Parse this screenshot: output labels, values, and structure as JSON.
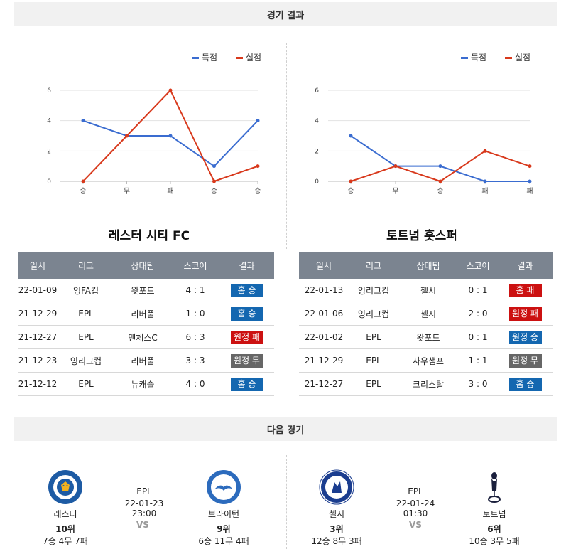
{
  "sections": {
    "results_title": "경기 결과",
    "next_title": "다음 경기"
  },
  "legend": {
    "scored": "득점",
    "conceded": "실점"
  },
  "colors": {
    "scored": "#3a6cd0",
    "conceded": "#d8391c",
    "win": "#1467b0",
    "loss": "#cc1111",
    "draw": "#666666"
  },
  "chart_data": [
    {
      "type": "line",
      "categories": [
        "승",
        "무",
        "패",
        "승",
        "승"
      ],
      "series": [
        {
          "name": "득점",
          "values": [
            4,
            3,
            3,
            1,
            4
          ]
        },
        {
          "name": "실점",
          "values": [
            0,
            3,
            6,
            0,
            1
          ]
        }
      ],
      "yticks": [
        "0",
        "2",
        "4",
        "6"
      ],
      "ylim": [
        0,
        6
      ],
      "grid": true,
      "legend": "top-right"
    },
    {
      "type": "line",
      "categories": [
        "승",
        "무",
        "승",
        "패",
        "패"
      ],
      "series": [
        {
          "name": "득점",
          "values": [
            3,
            1,
            1,
            0,
            0
          ]
        },
        {
          "name": "실점",
          "values": [
            0,
            1,
            0,
            2,
            1
          ]
        }
      ],
      "yticks": [
        "0",
        "2",
        "4",
        "6"
      ],
      "ylim": [
        0,
        6
      ],
      "grid": true,
      "legend": "top-right"
    }
  ],
  "headers": [
    "일시",
    "리그",
    "상대팀",
    "스코어",
    "결과"
  ],
  "teams": [
    {
      "name": "레스터 시티 FC",
      "rows": [
        {
          "date": "22-01-09",
          "league": "잉FA컵",
          "opponent": "왓포드",
          "score": "4 : 1",
          "result": "홈 승",
          "type": "win"
        },
        {
          "date": "21-12-29",
          "league": "EPL",
          "opponent": "리버풀",
          "score": "1 : 0",
          "result": "홈 승",
          "type": "win"
        },
        {
          "date": "21-12-27",
          "league": "EPL",
          "opponent": "맨체스C",
          "score": "6 : 3",
          "result": "원정 패",
          "type": "loss"
        },
        {
          "date": "21-12-23",
          "league": "잉리그컵",
          "opponent": "리버풀",
          "score": "3 : 3",
          "result": "원정 무",
          "type": "draw"
        },
        {
          "date": "21-12-12",
          "league": "EPL",
          "opponent": "뉴캐슬",
          "score": "4 : 0",
          "result": "홈 승",
          "type": "win"
        }
      ]
    },
    {
      "name": "토트넘 홋스퍼",
      "rows": [
        {
          "date": "22-01-13",
          "league": "잉리그컵",
          "opponent": "첼시",
          "score": "0 : 1",
          "result": "홈 패",
          "type": "loss"
        },
        {
          "date": "22-01-06",
          "league": "잉리그컵",
          "opponent": "첼시",
          "score": "2 : 0",
          "result": "원정 패",
          "type": "loss"
        },
        {
          "date": "22-01-02",
          "league": "EPL",
          "opponent": "왓포드",
          "score": "0 : 1",
          "result": "원정 승",
          "type": "win"
        },
        {
          "date": "21-12-29",
          "league": "EPL",
          "opponent": "사우샘프",
          "score": "1 : 1",
          "result": "원정 무",
          "type": "draw"
        },
        {
          "date": "21-12-27",
          "league": "EPL",
          "opponent": "크리스탈",
          "score": "3 : 0",
          "result": "홈 승",
          "type": "win"
        }
      ]
    }
  ],
  "next_matches": [
    {
      "league": "EPL",
      "datetime": "22-01-23 23:00",
      "vs": "VS",
      "home": {
        "name": "레스터",
        "rank": "10위",
        "record": "7승 4무 7패",
        "logo": "leicester-crest"
      },
      "away": {
        "name": "브라이턴",
        "rank": "9위",
        "record": "6승 11무 4패",
        "logo": "brighton-crest"
      }
    },
    {
      "league": "EPL",
      "datetime": "22-01-24 01:30",
      "vs": "VS",
      "home": {
        "name": "첼시",
        "rank": "3위",
        "record": "12승 8무 3패",
        "logo": "chelsea-crest"
      },
      "away": {
        "name": "토트넘",
        "rank": "6위",
        "record": "10승 3무 5패",
        "logo": "tottenham-crest"
      }
    }
  ]
}
